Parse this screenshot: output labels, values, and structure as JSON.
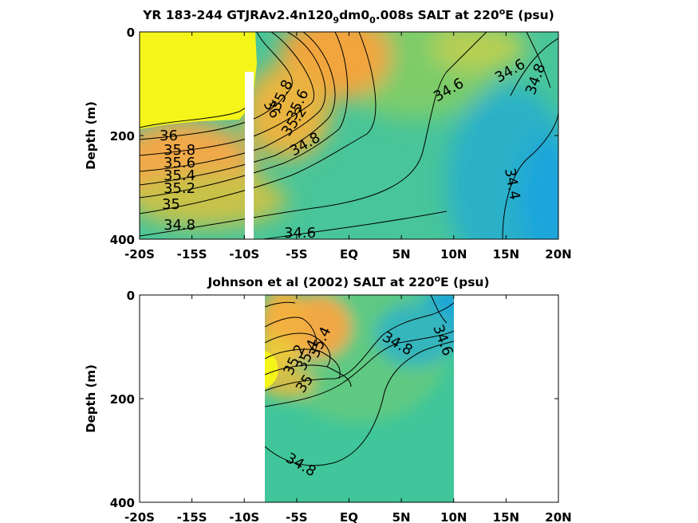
{
  "chart_data": [
    {
      "type": "heatmap",
      "title": "YR 183-244 GTJRAv2.4n120",
      "title_sub1": "9",
      "title_mid": "dm0",
      "title_sub2": "0",
      "title_end": ".008s SALT at 220",
      "title_sup": "o",
      "title_tail": "E (psu)",
      "ylabel": "Depth (m)",
      "xlabel": "",
      "xticks": [
        "-20S",
        "-15S",
        "-10S",
        "-5S",
        "EQ",
        "5N",
        "10N",
        "15N",
        "20N"
      ],
      "yticks": [
        "0",
        "200",
        "400"
      ],
      "xlim": [
        -20,
        20
      ],
      "ylim": [
        0,
        400
      ],
      "colors": {
        "high": "#f5f519",
        "mid": "#f0a842",
        "low": "#31c2a3",
        "fresh": "#1aa9d9"
      },
      "contour_labels": [
        "36",
        "35.8",
        "35.6",
        "35.4",
        "35.2",
        "35",
        "34.8",
        "34.6",
        "34.4"
      ]
    },
    {
      "type": "heatmap",
      "title": "Johnson et al (2002) SALT at 220",
      "title_sup": "o",
      "title_tail": "E (psu)",
      "ylabel": "Depth (m)",
      "xlabel": "",
      "xticks": [
        "-20S",
        "-15S",
        "-10S",
        "-5S",
        "EQ",
        "5N",
        "10N",
        "15N",
        "20N"
      ],
      "yticks": [
        "0",
        "200",
        "400"
      ],
      "xlim": [
        -20,
        20
      ],
      "ylim": [
        0,
        400
      ],
      "data_x_range": [
        -8,
        10
      ],
      "contour_labels": [
        "35.4",
        "35.2",
        "35",
        "34.8",
        "34.6"
      ]
    }
  ]
}
